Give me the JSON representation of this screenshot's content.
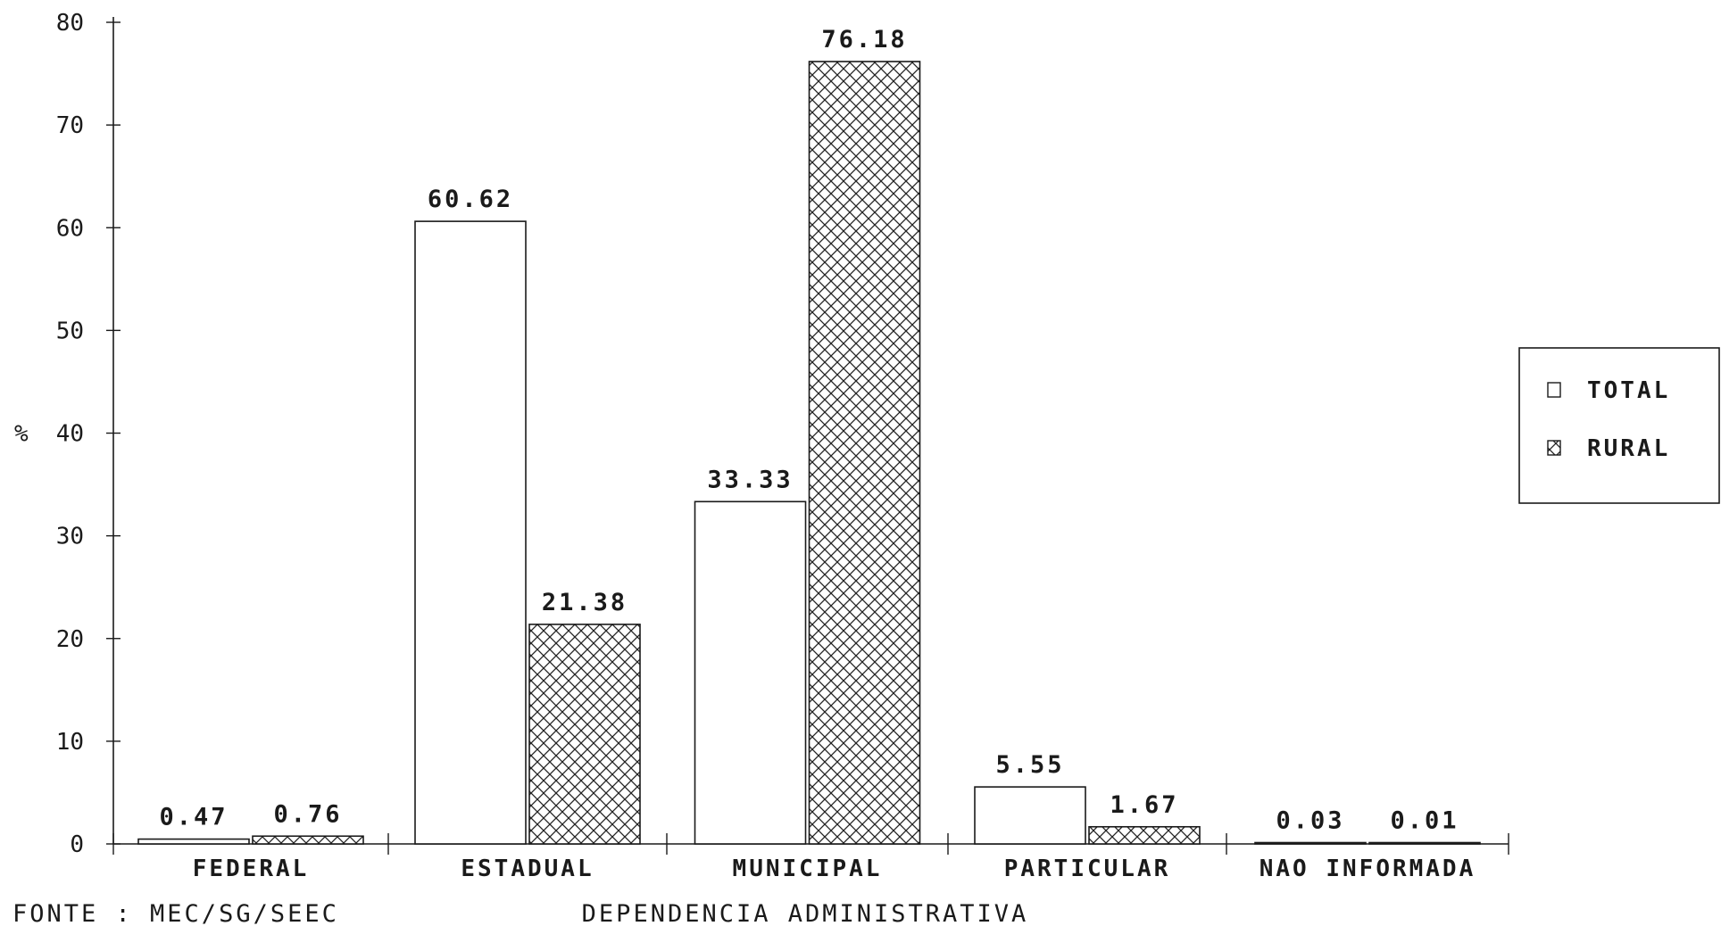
{
  "chart_data": {
    "type": "bar",
    "ylabel": "%",
    "xlabel": "DEPENDENCIA ADMINISTRATIVA",
    "source": "FONTE : MEC/SG/SEEC",
    "ylim": [
      0,
      80
    ],
    "yticks": [
      0,
      10,
      20,
      30,
      40,
      50,
      60,
      70,
      80
    ],
    "grid": false,
    "legend_position": "right",
    "categories": [
      "FEDERAL",
      "ESTADUAL",
      "MUNICIPAL",
      "PARTICULAR",
      "NAO INFORMADA"
    ],
    "series": [
      {
        "name": "TOTAL",
        "values": [
          0.47,
          60.62,
          33.33,
          5.55,
          0.03
        ],
        "fill": "#ffffff",
        "pattern": "none"
      },
      {
        "name": "RURAL",
        "values": [
          0.76,
          21.38,
          76.18,
          1.67,
          0.01
        ],
        "fill": "#ffffff",
        "pattern": "crosshatch"
      }
    ],
    "value_labels": [
      [
        "0.47",
        "60.62",
        "33.33",
        "5.55",
        "0.03"
      ],
      [
        "0.76",
        "21.38",
        "76.18",
        "1.67",
        "0.01"
      ]
    ],
    "ytick_labels": [
      "0",
      "10",
      "20",
      "30",
      "40",
      "50",
      "60",
      "70",
      "80"
    ]
  },
  "colors": {
    "ink": "#1a1a1a",
    "background": "#ffffff"
  }
}
